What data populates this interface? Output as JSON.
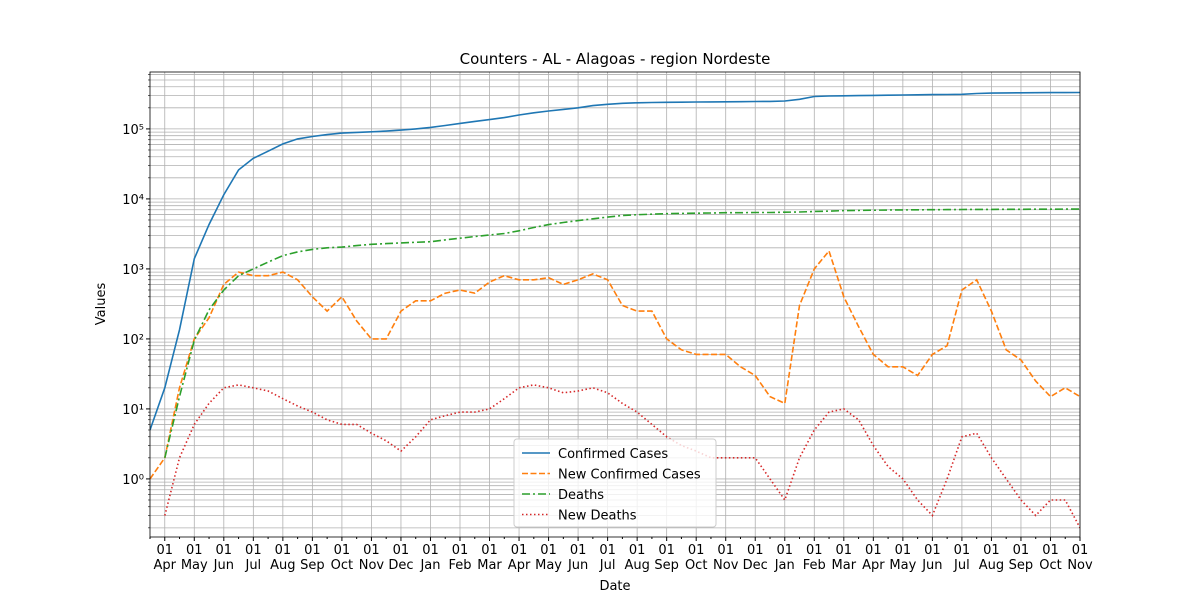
{
  "chart_data": {
    "type": "line",
    "title": "Counters - AL - Alagoas - region Nordeste",
    "xlabel": "Date",
    "ylabel": "Values",
    "categories": [
      null,
      "01\nApr",
      null,
      "01\nMay",
      null,
      "01\nJun",
      null,
      "01\nJul",
      null,
      "01\nAug",
      null,
      "01\nSep",
      null,
      "01\nOct",
      null,
      "01\nNov",
      null,
      "01\nDec",
      null,
      "01\nJan",
      null,
      "01\nFeb",
      null,
      "01\nMar",
      null,
      "01\nApr",
      null,
      "01\nMay",
      null,
      "01\nJun",
      null,
      "01\nJul",
      null,
      "01\nAug",
      null,
      "01\nSep",
      null,
      "01\nOct",
      null,
      "01\nNov",
      null,
      "01\nDec",
      null,
      "01\nJan",
      null,
      "01\nFeb",
      null,
      "01\nMar",
      null,
      "01\nApr",
      null,
      "01\nMay",
      null,
      "01\nJun",
      null,
      "01\nJul",
      null,
      "01\nAug",
      null,
      "01\nSep",
      null,
      "01\nOct",
      null,
      "01\nNov"
    ],
    "series": [
      {
        "name": "Confirmed Cases",
        "color": "#1f77b4",
        "dash": "solid",
        "values": [
          5,
          20,
          135,
          1400,
          4300,
          11500,
          26000,
          38000,
          48000,
          61000,
          72000,
          78000,
          83000,
          87000,
          89000,
          91000,
          93000,
          96000,
          100000,
          105000,
          112000,
          120000,
          128000,
          136000,
          145000,
          158000,
          170000,
          180000,
          190000,
          200000,
          215000,
          225000,
          232000,
          236000,
          238000,
          240000,
          241000,
          242000,
          243000,
          244000,
          245000,
          246000,
          247000,
          250000,
          265000,
          290000,
          295000,
          297000,
          299000,
          301000,
          303000,
          305000,
          307000,
          309000,
          310000,
          312000,
          320000,
          325000,
          327000,
          328000,
          329000,
          330000,
          330000,
          331000
        ]
      },
      {
        "name": "New Confirmed Cases",
        "color": "#ff7f0e",
        "dash": "dashed",
        "values": [
          1,
          2,
          20,
          100,
          200,
          600,
          900,
          800,
          800,
          900,
          700,
          400,
          250,
          400,
          180,
          100,
          100,
          250,
          350,
          350,
          450,
          500,
          450,
          650,
          800,
          700,
          700,
          750,
          600,
          700,
          850,
          700,
          300,
          250,
          250,
          100,
          70,
          60,
          60,
          60,
          40,
          30,
          15,
          12,
          300,
          1000,
          1800,
          400,
          150,
          60,
          40,
          40,
          30,
          60,
          80,
          500,
          700,
          250,
          70,
          50,
          25,
          15,
          20,
          15
        ]
      },
      {
        "name": "Deaths",
        "color": "#2ca02c",
        "dash": "dashdot",
        "values": [
          null,
          2,
          15,
          96,
          260,
          500,
          800,
          1000,
          1250,
          1550,
          1750,
          1900,
          2000,
          2050,
          2150,
          2250,
          2300,
          2350,
          2400,
          2450,
          2600,
          2750,
          2900,
          3050,
          3200,
          3500,
          3900,
          4300,
          4600,
          4900,
          5200,
          5500,
          5800,
          5950,
          6050,
          6150,
          6200,
          6250,
          6300,
          6350,
          6350,
          6400,
          6400,
          6450,
          6500,
          6600,
          6700,
          6800,
          6850,
          6900,
          6950,
          6970,
          6990,
          7010,
          7030,
          7050,
          7070,
          7090,
          7100,
          7110,
          7120,
          7130,
          7140,
          7150
        ]
      },
      {
        "name": "New Deaths",
        "color": "#d62728",
        "dash": "dotted",
        "values": [
          null,
          0.3,
          2,
          6,
          12,
          20,
          22,
          20,
          18,
          14,
          11,
          9,
          7,
          6,
          6,
          4.5,
          3.5,
          2.5,
          4,
          7,
          8,
          9,
          9,
          10,
          14,
          20,
          22,
          20,
          17,
          18,
          20,
          17,
          12,
          9,
          6,
          4,
          3,
          2.5,
          2,
          2,
          2,
          2,
          1,
          0.5,
          2,
          5,
          9,
          10,
          7,
          3,
          1.5,
          1,
          0.5,
          0.3,
          1,
          4,
          4.5,
          2,
          1,
          0.5,
          0.3,
          0.5,
          0.5,
          0.2
        ]
      }
    ],
    "ylog": true,
    "ylim": [
      0.148,
      650000
    ],
    "yticks": [
      {
        "value": 1,
        "label": "10⁰"
      },
      {
        "value": 10,
        "label": "10¹"
      },
      {
        "value": 100,
        "label": "10²"
      },
      {
        "value": 1000,
        "label": "10³"
      },
      {
        "value": 10000,
        "label": "10⁴"
      },
      {
        "value": 100000,
        "label": "10⁵"
      }
    ],
    "minor_yticks": [
      0.2,
      0.3,
      0.4,
      0.5,
      0.6,
      0.7,
      0.8,
      0.9,
      2,
      3,
      4,
      5,
      6,
      7,
      8,
      9,
      20,
      30,
      40,
      50,
      60,
      70,
      80,
      90,
      200,
      300,
      400,
      500,
      600,
      700,
      800,
      900,
      2000,
      3000,
      4000,
      5000,
      6000,
      7000,
      8000,
      9000,
      20000,
      30000,
      40000,
      50000,
      60000,
      70000,
      80000,
      90000,
      200000,
      300000,
      400000,
      500000,
      600000
    ],
    "grid": true,
    "minor_grid": true,
    "legend": "lower center"
  }
}
